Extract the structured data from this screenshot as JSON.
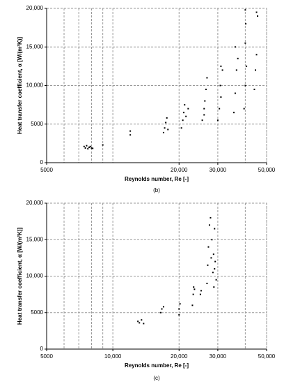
{
  "chart_data": [
    {
      "type": "scatter",
      "caption": "(b)",
      "x_label": "Reynolds number,  Re  [-]",
      "y_label": "Heat transfer coefficient,  α  [W/(m²K)]",
      "log_x": true,
      "grid": true,
      "color": "#000000",
      "xlim": [
        5000,
        50000
      ],
      "xticks": [
        5000,
        {
          "value": 20000,
          "label": "20,000"
        },
        {
          "value": 30000,
          "label": "30,000"
        },
        {
          "value": 50000,
          "label": "50,000"
        }
      ],
      "x_minor_grid": [
        6000,
        7000,
        8000,
        9000,
        10000,
        40000
      ],
      "ylim": [
        0,
        20000
      ],
      "yticks": [
        0,
        5000,
        {
          "value": 10000,
          "label": "10,000"
        },
        {
          "value": 15000,
          "label": "15,000"
        },
        {
          "value": 20000,
          "label": "20,000"
        }
      ],
      "x": [
        7400,
        7500,
        7600,
        7700,
        7800,
        7900,
        8000,
        8100,
        9000,
        12000,
        12000,
        17000,
        17200,
        17400,
        17600,
        17800,
        20500,
        20800,
        21000,
        21200,
        21500,
        22000,
        25500,
        26000,
        26200,
        26500,
        26800,
        26000,
        30000,
        30500,
        31000,
        31500,
        31000,
        30800,
        35500,
        36000,
        36500,
        36000,
        37000,
        39500,
        40000,
        40500,
        40000,
        40200,
        40000,
        44000,
        44500,
        45000,
        45500,
        45000
      ],
      "values": [
        2100,
        1900,
        2200,
        1800,
        2000,
        2100,
        1900,
        1850,
        2300,
        3600,
        4100,
        3900,
        4500,
        5200,
        5800,
        4300,
        4500,
        5500,
        6500,
        7500,
        6000,
        7000,
        5500,
        7000,
        8000,
        9500,
        11000,
        6200,
        5500,
        7000,
        8500,
        12000,
        12500,
        10000,
        6500,
        9000,
        12000,
        15000,
        13500,
        7000,
        10000,
        12500,
        15500,
        18000,
        19800,
        9500,
        12000,
        14000,
        19000,
        19500
      ]
    },
    {
      "type": "scatter",
      "caption": "(c)",
      "x_label": "Reynolds number,  Re  [-]",
      "y_label": "Heat transfer coefficient,  α  [W/(m²K)]",
      "log_x": true,
      "grid": true,
      "color": "#000000",
      "xlim": [
        5000,
        50000
      ],
      "xticks": [
        5000,
        {
          "value": 10000,
          "label": "10,000"
        },
        {
          "value": 20000,
          "label": "20,000"
        },
        {
          "value": 30000,
          "label": "30,000"
        },
        {
          "value": 50000,
          "label": "50,000"
        }
      ],
      "x_minor_grid": [
        6000,
        7000,
        8000,
        9000,
        40000
      ],
      "ylim": [
        0,
        20000
      ],
      "yticks": [
        0,
        5000,
        {
          "value": 10000,
          "label": "10,000"
        },
        {
          "value": 15000,
          "label": "15,000"
        },
        {
          "value": 20000,
          "label": "20,000"
        }
      ],
      "x": [
        13000,
        13200,
        13500,
        13800,
        16500,
        16700,
        17000,
        20000,
        20000,
        20200,
        23000,
        23200,
        23500,
        23300,
        25000,
        25200,
        26800,
        27000,
        27200,
        27500,
        27800,
        28000,
        28200,
        28500,
        28700,
        29000,
        29200,
        29500,
        29000,
        28800
      ],
      "values": [
        3800,
        3600,
        4000,
        3500,
        5000,
        5500,
        5800,
        4700,
        5500,
        6200,
        6000,
        7500,
        8200,
        8500,
        7500,
        8000,
        9000,
        11500,
        14000,
        17000,
        18000,
        12500,
        15000,
        10500,
        13000,
        11000,
        12000,
        9500,
        16500,
        8500
      ]
    }
  ]
}
